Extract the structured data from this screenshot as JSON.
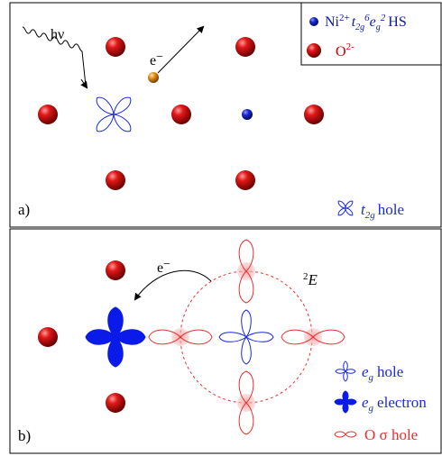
{
  "panel_a": {
    "label": "a)",
    "photon_label": "hν",
    "electron_label": "e",
    "legend": {
      "ni_prefix": "Ni",
      "ni_charge": "2+",
      "ni_t": "t",
      "ni_t_sub": "2g",
      "ni_t_sup": "6",
      "ni_e": "e",
      "ni_e_sub": "g",
      "ni_e_sup": "2",
      "ni_suffix": "HS",
      "o_label": "O",
      "o_charge": "2-"
    },
    "hole_legend": {
      "t": "t",
      "sub": "2g",
      "suffix": "hole"
    }
  },
  "panel_b": {
    "label": "b)",
    "electron_label": "e",
    "state_sup": "2",
    "state_label": "E",
    "legend": {
      "eg_hole_e": "e",
      "eg_hole_sub": "g",
      "eg_hole_suffix": "hole",
      "eg_electron_e": "e",
      "eg_electron_sub": "g",
      "eg_electron_suffix": "electron",
      "o_hole": "O σ hole"
    }
  },
  "colors": {
    "oxygen": "#cc0000",
    "nickel": "#0a1aa8",
    "orbital_blue": "#1a2ae0",
    "orbital_red": "#e83030",
    "electron": "#e08a1a",
    "pink_glow": "#f6b8b8"
  }
}
